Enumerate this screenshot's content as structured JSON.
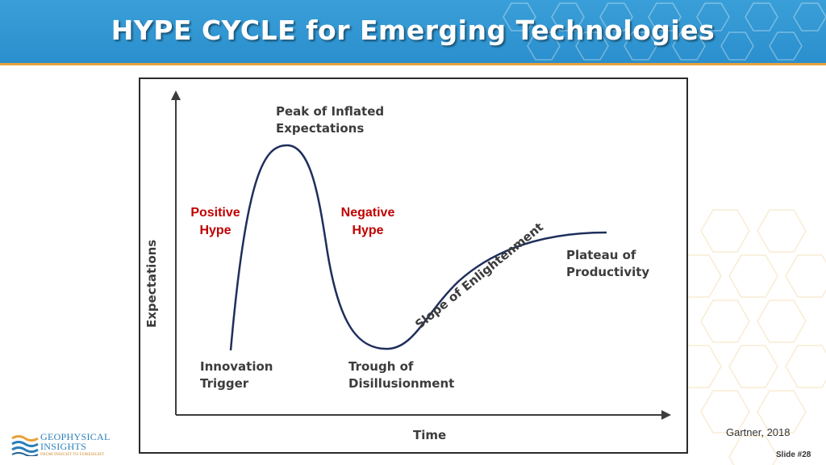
{
  "slide": {
    "title": "HYPE CYCLE for Emerging Technologies",
    "source": "Gartner, 2018",
    "slide_number": "Slide #28"
  },
  "logo": {
    "name_line1": "GEOPHYSICAL",
    "name_line2": "INSIGHTS",
    "tagline": "FROM INSIGHT TO FORESIGHT"
  },
  "diagram": {
    "y_axis_label": "Expectations",
    "x_axis_label": "Time",
    "phases": {
      "innovation_trigger": [
        "Innovation",
        "Trigger"
      ],
      "peak": [
        "Peak of Inflated",
        "Expectations"
      ],
      "trough": [
        "Trough of",
        "Disillusionment"
      ],
      "slope": "Slope of Enlightenment",
      "plateau": [
        "Plateau of",
        "Productivity"
      ]
    },
    "positive_hype": [
      "Positive",
      "Hype"
    ],
    "negative_hype": [
      "Negative",
      "Hype"
    ]
  },
  "colors": {
    "header": "#2a8fcd",
    "header_rule": "#e7a13a",
    "hype_text": "#c00000",
    "curve": "#1f2f5c"
  }
}
